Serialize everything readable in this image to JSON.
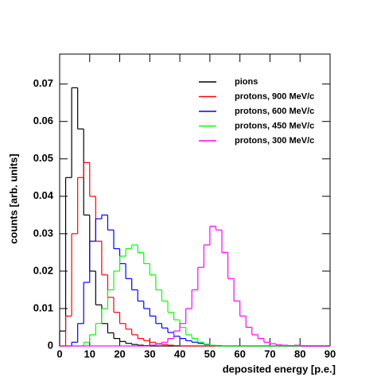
{
  "chart_data": {
    "type": "histogram",
    "xlabel": "deposited energy [p.e.]",
    "ylabel": "counts [arb. units]",
    "bins": [
      0,
      2,
      4,
      6,
      8,
      10,
      12,
      14,
      16,
      18,
      20,
      22,
      24,
      26,
      28,
      30,
      32,
      34,
      36,
      38,
      40,
      42,
      44,
      46,
      48,
      50,
      52,
      54,
      56,
      58,
      60,
      62,
      64,
      66,
      68,
      70,
      72,
      74,
      76,
      78,
      80,
      82,
      84,
      86,
      88,
      90
    ],
    "series": [
      {
        "name": "pions",
        "color": "#000000",
        "values": [
          0.004,
          0.045,
          0.069,
          0.058,
          0.035,
          0.02,
          0.011,
          0.006,
          0.0035,
          0.002,
          0.0012,
          0.0007,
          0.0004,
          0.0002,
          0.0001,
          0,
          0,
          0,
          0,
          0,
          0,
          0,
          0,
          0,
          0,
          0,
          0,
          0,
          0,
          0,
          0,
          0,
          0,
          0,
          0,
          0,
          0,
          0,
          0,
          0,
          0,
          0,
          0,
          0,
          0
        ]
      },
      {
        "name": "protons, 900 MeV/c",
        "color": "#ff0000",
        "values": [
          0,
          0.008,
          0.03,
          0.045,
          0.049,
          0.04,
          0.028,
          0.019,
          0.013,
          0.009,
          0.006,
          0.0045,
          0.003,
          0.002,
          0.0014,
          0.001,
          0.0006,
          0.0004,
          0.0002,
          0.0001,
          0,
          0,
          0,
          0,
          0,
          0,
          0,
          0,
          0,
          0,
          0,
          0,
          0,
          0,
          0,
          0,
          0,
          0,
          0,
          0,
          0,
          0,
          0,
          0,
          0
        ]
      },
      {
        "name": "protons, 600 MeV/c",
        "color": "#0000ff",
        "values": [
          0,
          0,
          0.001,
          0.006,
          0.017,
          0.028,
          0.034,
          0.035,
          0.031,
          0.026,
          0.022,
          0.018,
          0.015,
          0.012,
          0.01,
          0.008,
          0.006,
          0.0048,
          0.0036,
          0.0026,
          0.002,
          0.0014,
          0.001,
          0.0007,
          0.0004,
          0.0002,
          0.0001,
          0,
          0,
          0,
          0,
          0,
          0,
          0,
          0,
          0,
          0,
          0,
          0,
          0,
          0,
          0,
          0,
          0,
          0
        ]
      },
      {
        "name": "protons, 450 MeV/c",
        "color": "#00ff00",
        "values": [
          0,
          0,
          0,
          0,
          0.001,
          0.003,
          0.006,
          0.01,
          0.015,
          0.02,
          0.024,
          0.026,
          0.027,
          0.025,
          0.022,
          0.019,
          0.015,
          0.012,
          0.009,
          0.007,
          0.005,
          0.003,
          0.002,
          0.001,
          0.0005,
          0.0002,
          0,
          0,
          0,
          0,
          0,
          0,
          0,
          0,
          0,
          0,
          0,
          0,
          0,
          0,
          0,
          0,
          0,
          0,
          0
        ]
      },
      {
        "name": "protons, 300 MeV/c",
        "color": "#ff00ff",
        "values": [
          0,
          0,
          0,
          0,
          0,
          0,
          0,
          0,
          0,
          0,
          0,
          0,
          0,
          0,
          0,
          0.0002,
          0.0005,
          0.001,
          0.002,
          0.004,
          0.006,
          0.01,
          0.015,
          0.021,
          0.027,
          0.032,
          0.031,
          0.025,
          0.018,
          0.012,
          0.008,
          0.005,
          0.003,
          0.002,
          0.001,
          0.0006,
          0.0003,
          0.0002,
          0.0001,
          0.0002,
          0,
          0,
          0,
          0,
          0
        ]
      }
    ],
    "xlim": [
      0,
      90
    ],
    "xticks": [
      0,
      10,
      20,
      30,
      40,
      50,
      60,
      70,
      80,
      90
    ],
    "ylim": [
      0,
      0.078
    ],
    "yticks": [
      0,
      0.01,
      0.02,
      0.03,
      0.04,
      0.05,
      0.06,
      0.07
    ]
  }
}
